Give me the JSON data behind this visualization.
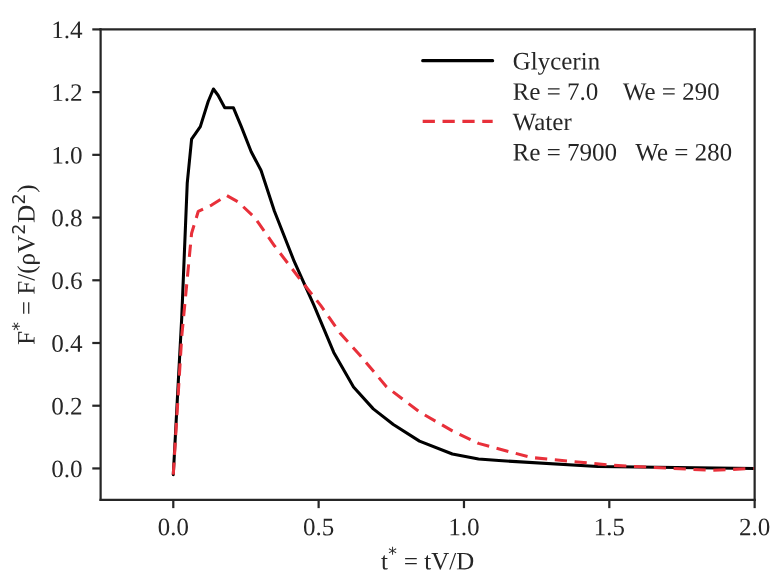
{
  "chart_data": {
    "type": "line",
    "xlabel": "t$^{*}$ = tV/D",
    "ylabel": "F$^{*}$ = F/(ρV$^{2}$D$^{2}$)",
    "xlim": [
      -0.25,
      2.0
    ],
    "xticks": [
      {
        "value": 0.0,
        "label": "0.0"
      },
      0.5,
      {
        "value": 1.0,
        "label": "1.0"
      },
      1.5,
      {
        "value": 2.0,
        "label": "2.0"
      }
    ],
    "ylim": [
      -0.1,
      1.4
    ],
    "yticks": [
      {
        "value": 0.0,
        "label": "0.0"
      },
      0.2,
      0.4,
      0.6,
      0.8,
      {
        "value": 1.0,
        "label": "1.0"
      },
      1.2,
      1.4
    ],
    "grid": false,
    "legend": "top right",
    "annotations": [
      "Re = 7.0    We = 290",
      "Re = 7900   We = 280"
    ],
    "series": [
      {
        "name": "Glycerin",
        "color": "#000000",
        "line_style": "solid",
        "x": [
          0,
          0.029,
          0.048,
          0.063,
          0.093,
          0.12,
          0.138,
          0.154,
          0.177,
          0.207,
          0.234,
          0.268,
          0.302,
          0.348,
          0.416,
          0.484,
          0.552,
          0.62,
          0.688,
          0.757,
          0.847,
          0.96,
          1.05,
          1.12,
          1.46,
          2.0
        ],
        "values": [
          -0.02,
          0.48,
          0.91,
          1.05,
          1.09,
          1.17,
          1.21,
          1.19,
          1.15,
          1.15,
          1.09,
          1.01,
          0.95,
          0.82,
          0.66,
          0.52,
          0.37,
          0.26,
          0.19,
          0.14,
          0.087,
          0.046,
          0.03,
          0.025,
          0.006,
          0.0
        ]
      },
      {
        "name": "Water",
        "color": "#e8303a",
        "line_style": "dashed",
        "x": [
          0,
          0.029,
          0.063,
          0.086,
          0.132,
          0.184,
          0.223,
          0.28,
          0.348,
          0.439,
          0.507,
          0.575,
          0.643,
          0.734,
          0.847,
          0.96,
          1.05,
          1.23,
          1.51,
          1.85,
          2.0
        ],
        "values": [
          -0.02,
          0.42,
          0.75,
          0.82,
          0.84,
          0.87,
          0.85,
          0.8,
          0.71,
          0.6,
          0.52,
          0.43,
          0.36,
          0.26,
          0.18,
          0.12,
          0.08,
          0.035,
          0.01,
          -0.006,
          0.0
        ]
      }
    ]
  }
}
